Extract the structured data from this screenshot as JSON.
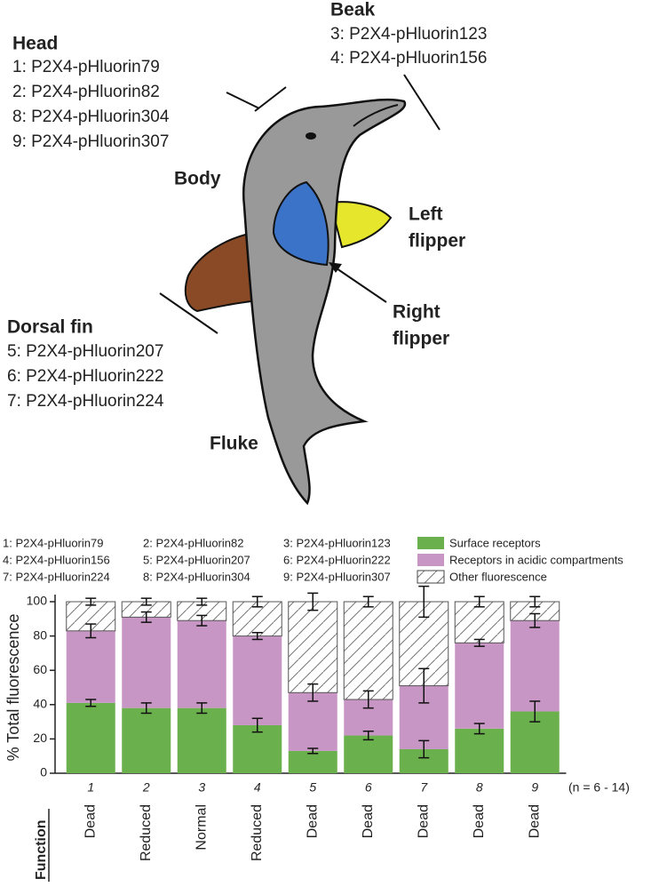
{
  "diagram": {
    "head": {
      "title": "Head",
      "items": [
        "1: P2X4-pHluorin79",
        "2: P2X4-pHluorin82",
        "8: P2X4-pHluorin304",
        "9: P2X4-pHluorin307"
      ]
    },
    "beak": {
      "title": "Beak",
      "items": [
        "3: P2X4-pHluorin123",
        "4: P2X4-pHluorin156"
      ]
    },
    "dorsal_fin": {
      "title": "Dorsal fin",
      "items": [
        "5: P2X4-pHluorin207",
        "6: P2X4-pHluorin222",
        "7: P2X4-pHluorin224"
      ]
    },
    "body": "Body",
    "left_flipper": [
      "Left",
      "flipper"
    ],
    "right_flipper": [
      "Right",
      "flipper"
    ],
    "fluke": "Fluke"
  },
  "chart_data": {
    "type": "stacked_bar",
    "key": [
      [
        "1: P2X4-pHluorin79",
        "2: P2X4-pHluorin82",
        "3: P2X4-pHluorin123"
      ],
      [
        "4: P2X4-pHluorin156",
        "5: P2X4-pHluorin207",
        "6: P2X4-pHluorin222"
      ],
      [
        "7: P2X4-pHluorin224",
        "8: P2X4-pHluorin304",
        "9: P2X4-pHluorin307"
      ]
    ],
    "y_label": "% Total fluorescence",
    "categories": [
      "1",
      "2",
      "3",
      "4",
      "5",
      "6",
      "7",
      "8",
      "9"
    ],
    "annotation": "(n = 6 - 14)",
    "function_label": "Function",
    "function": [
      "Dead",
      "Reduced",
      "Normal",
      "Reduced",
      "Dead",
      "Dead",
      "Dead",
      "Dead",
      "Dead"
    ],
    "series": [
      {
        "name": "Surface receptors",
        "color": "#6ab04c",
        "hatch": false,
        "values": [
          41,
          38,
          38,
          28,
          13,
          22,
          14,
          26,
          36
        ],
        "errors": [
          2,
          3,
          3,
          4,
          1.5,
          2.5,
          5,
          3,
          6
        ]
      },
      {
        "name": "Receptors in acidic compartments",
        "color": "#c796c4",
        "hatch": false,
        "values": [
          42,
          53,
          51,
          52,
          34,
          21,
          37,
          50,
          53
        ],
        "errors": [
          4,
          3,
          3,
          2,
          5,
          5,
          10,
          2,
          4
        ]
      },
      {
        "name": "Other fluorescence",
        "color": "#ffffff",
        "hatch": true,
        "values": [
          17,
          9,
          11,
          20,
          53,
          57,
          49,
          24,
          11
        ],
        "errors": [
          2,
          2,
          2,
          3,
          5,
          3,
          9,
          3,
          3
        ]
      }
    ],
    "ylim": [
      0,
      100
    ],
    "yticks": [
      0,
      20,
      40,
      60,
      80,
      100
    ]
  }
}
